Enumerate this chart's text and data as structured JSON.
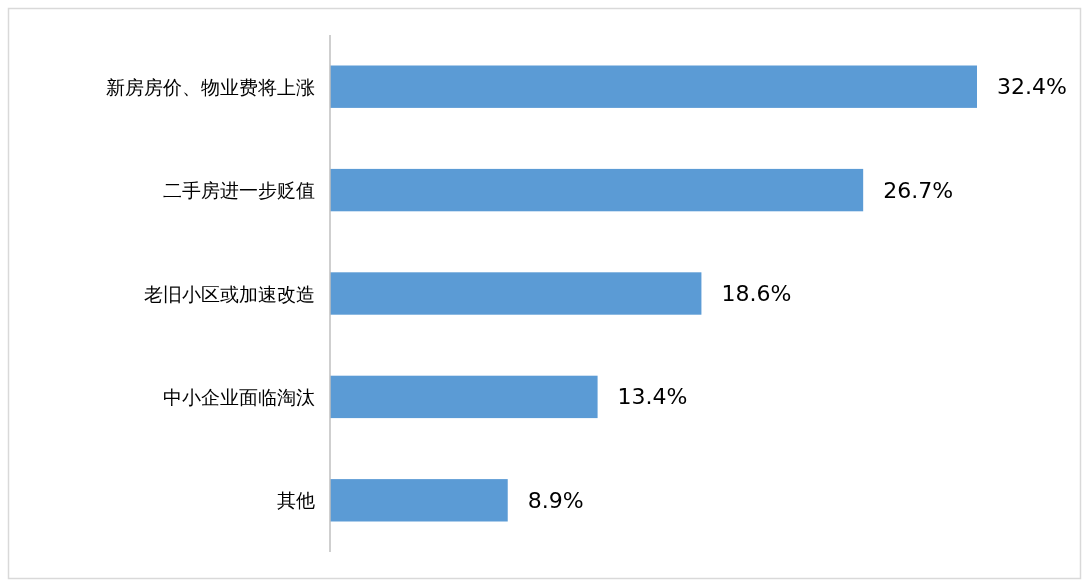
{
  "chart_data": {
    "type": "bar",
    "orientation": "horizontal",
    "categories": [
      "新房房价、物业费将上涨",
      "二手房进一步贬值",
      "老旧小区或加速改造",
      "中小企业面临淘汰",
      "其他"
    ],
    "values": [
      32.4,
      26.7,
      18.6,
      13.4,
      8.9
    ],
    "value_labels": [
      "32.4%",
      "26.7%",
      "18.6%",
      "13.4%",
      "8.9%"
    ],
    "color": "#5b9bd5"
  }
}
